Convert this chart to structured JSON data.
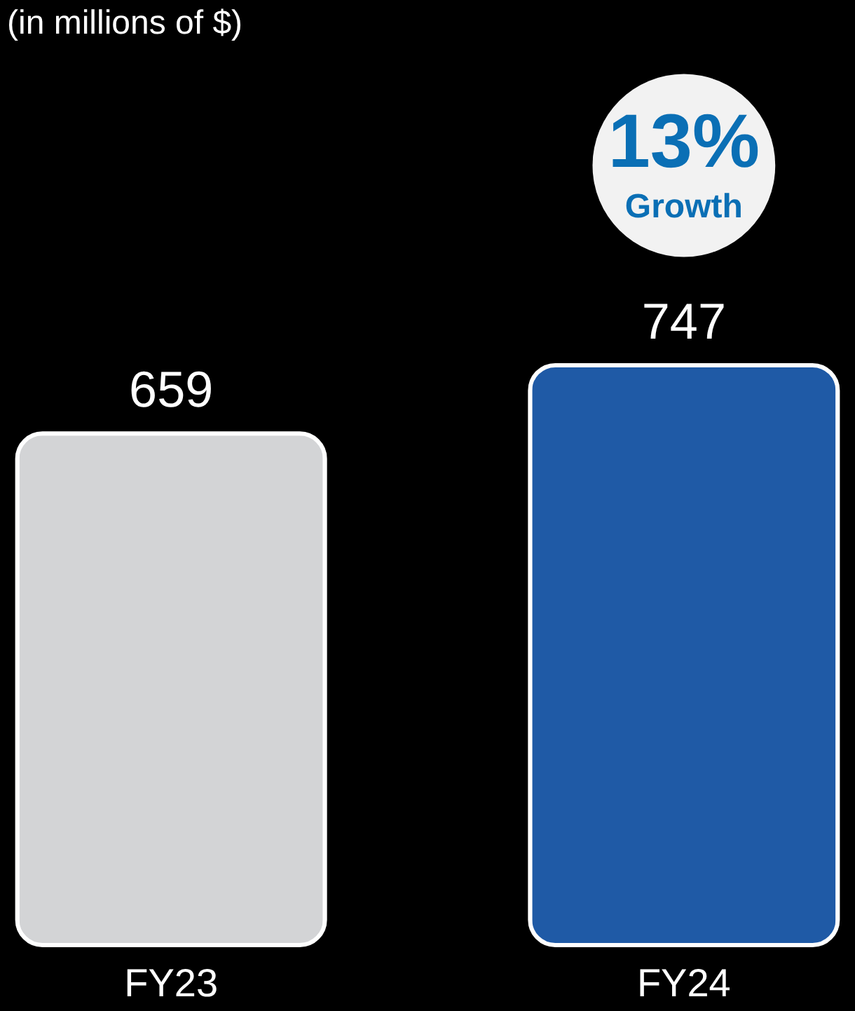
{
  "chart_data": {
    "type": "bar",
    "subtitle": "(in millions of $)",
    "categories": [
      "FY23",
      "FY24"
    ],
    "values": [
      659,
      747
    ],
    "colors": [
      "#d3d4d6",
      "#1f5aa6"
    ],
    "data_labels": true,
    "annotations": [
      "13%",
      "Growth"
    ]
  }
}
